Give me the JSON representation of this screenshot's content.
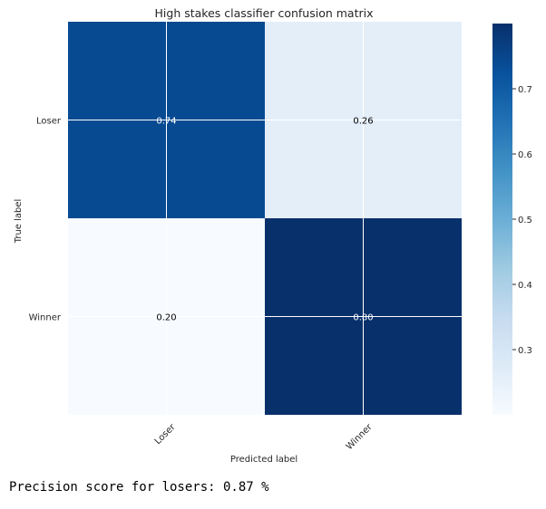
{
  "chart_data": {
    "type": "heatmap",
    "title": "High stakes classifier confusion matrix",
    "xlabel": "Predicted label",
    "ylabel": "True label",
    "x_categories": [
      "Loser",
      "Winner"
    ],
    "y_categories": [
      "Loser",
      "Winner"
    ],
    "matrix": [
      [
        0.74,
        0.26
      ],
      [
        0.2,
        0.8
      ]
    ],
    "cell_labels": [
      [
        "0.74",
        "0.26"
      ],
      [
        "0.20",
        "0.80"
      ]
    ],
    "colormap": "Blues",
    "colorbar": {
      "range": [
        0.2,
        0.8
      ],
      "ticks": [
        0.3,
        0.4,
        0.5,
        0.6,
        0.7
      ],
      "tick_labels": [
        "0.3",
        "0.4",
        "0.5",
        "0.6",
        "0.7"
      ]
    },
    "grid": true
  },
  "footer_text": "Precision score for losers: 0.87 %"
}
